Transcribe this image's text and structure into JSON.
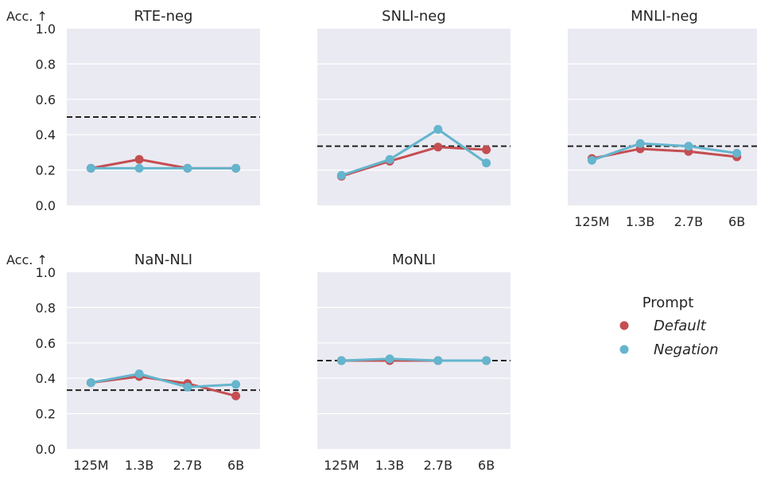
{
  "chart_data": {
    "type": "line",
    "ylabel": "Acc. ↑",
    "ylim": [
      0,
      1
    ],
    "yticks": [
      "0.0",
      "0.2",
      "0.4",
      "0.6",
      "0.8",
      "1.0"
    ],
    "categories": [
      "125M",
      "1.3B",
      "2.7B",
      "6B"
    ],
    "grid": true,
    "legend": {
      "title": "Prompt",
      "placement": "right",
      "entries": [
        {
          "name": "Default",
          "color": "#c44e52"
        },
        {
          "name": "Negation",
          "color": "#64b5cd"
        }
      ]
    },
    "panels": [
      {
        "title": "RTE-neg",
        "baseline": 0.5,
        "series": [
          {
            "name": "Default",
            "values": [
              0.21,
              0.26,
              0.21,
              0.21
            ]
          },
          {
            "name": "Negation",
            "values": [
              0.21,
              0.21,
              0.21,
              0.21
            ]
          }
        ]
      },
      {
        "title": "SNLI-neg",
        "baseline": 0.335,
        "series": [
          {
            "name": "Default",
            "values": [
              0.165,
              0.25,
              0.33,
              0.315
            ]
          },
          {
            "name": "Negation",
            "values": [
              0.17,
              0.26,
              0.43,
              0.24
            ]
          }
        ]
      },
      {
        "title": "MNLI-neg",
        "baseline": 0.335,
        "series": [
          {
            "name": "Default",
            "values": [
              0.265,
              0.32,
              0.305,
              0.275
            ]
          },
          {
            "name": "Negation",
            "values": [
              0.255,
              0.35,
              0.335,
              0.295
            ]
          }
        ]
      },
      {
        "title": "NaN-NLI",
        "baseline": 0.333,
        "series": [
          {
            "name": "Default",
            "values": [
              0.375,
              0.41,
              0.37,
              0.3
            ]
          },
          {
            "name": "Negation",
            "values": [
              0.375,
              0.425,
              0.35,
              0.365
            ]
          }
        ]
      },
      {
        "title": "MoNLI",
        "baseline": 0.5,
        "series": [
          {
            "name": "Default",
            "values": [
              0.5,
              0.5,
              0.5,
              0.5
            ]
          },
          {
            "name": "Negation",
            "values": [
              0.5,
              0.51,
              0.5,
              0.5
            ]
          }
        ]
      }
    ]
  }
}
